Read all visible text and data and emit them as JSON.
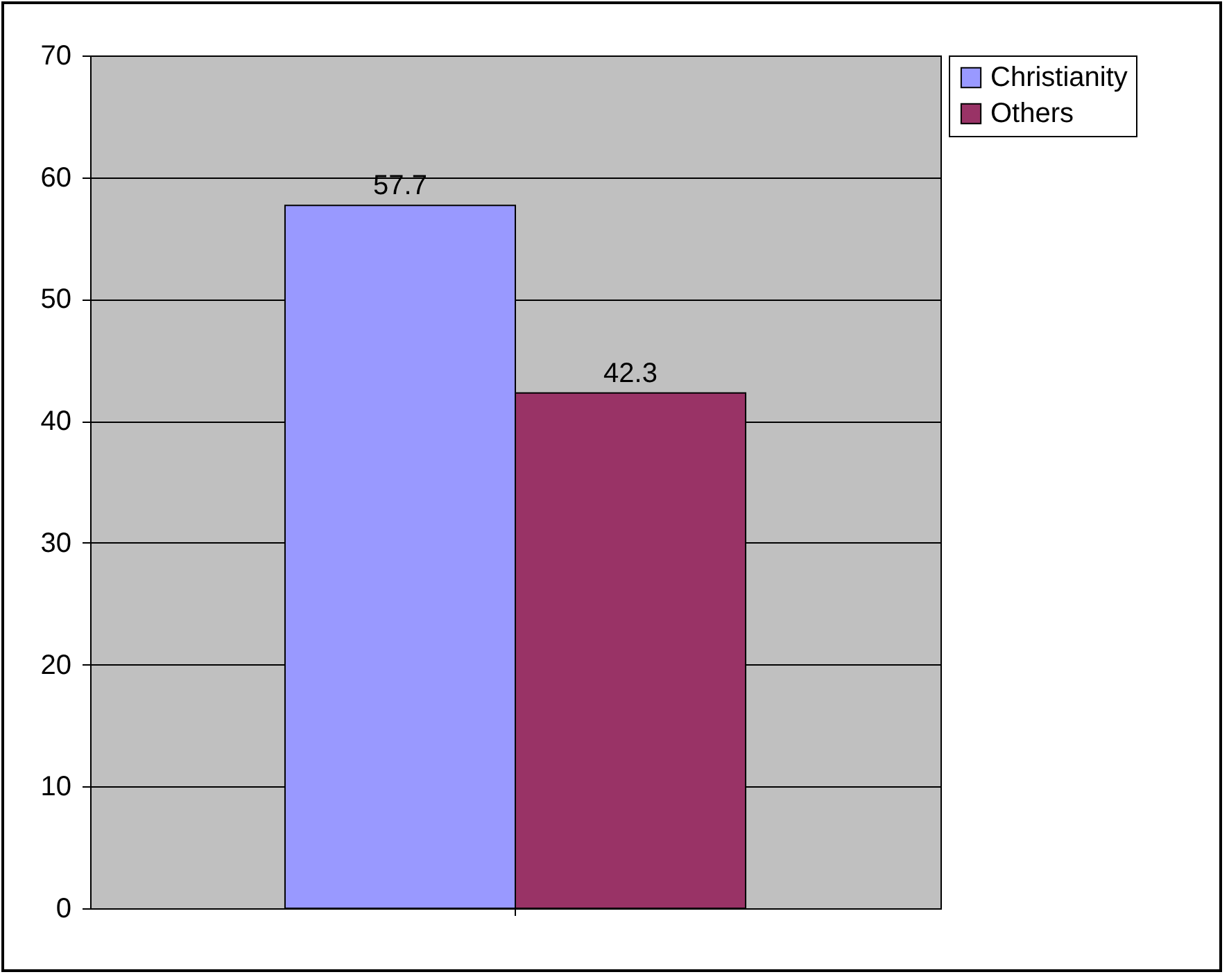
{
  "chart_data": {
    "type": "bar",
    "categories": [
      null
    ],
    "series": [
      {
        "name": "Christianity",
        "color": "#9999ff",
        "values": [
          57.7
        ]
      },
      {
        "name": "Others",
        "color": "#993366",
        "values": [
          42.3
        ]
      }
    ],
    "ylim": [
      0,
      70
    ],
    "yticks": [
      0,
      10,
      20,
      30,
      40,
      50,
      60,
      70
    ],
    "grid": "y",
    "legend": "right",
    "data_labels": true,
    "tick_labels": "y"
  }
}
